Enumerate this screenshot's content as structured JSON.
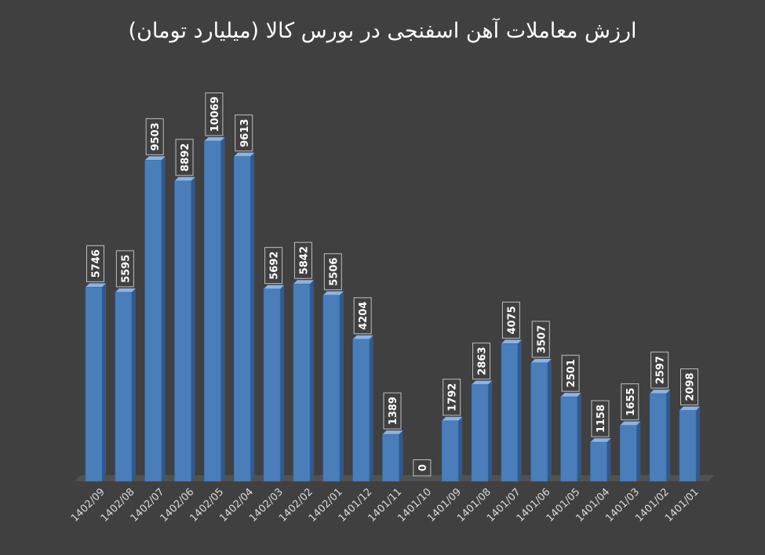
{
  "chart_data": {
    "type": "bar",
    "title": "ارزش معاملات آهن اسفنجی در بورس کالا (میلیارد تومان)",
    "categories": [
      "1402/09",
      "1402/08",
      "1402/07",
      "1402/06",
      "1402/05",
      "1402/04",
      "1402/03",
      "1402/02",
      "1402/01",
      "1401/12",
      "1401/11",
      "1401/10",
      "1401/09",
      "1401/08",
      "1401/07",
      "1401/06",
      "1401/05",
      "1401/04",
      "1401/03",
      "1401/02",
      "1401/01"
    ],
    "values": [
      5746,
      5595,
      9503,
      8892,
      10069,
      9613,
      5692,
      5842,
      5506,
      4204,
      1389,
      0,
      1792,
      2863,
      4075,
      3507,
      2501,
      1158,
      1655,
      2597,
      2098
    ],
    "value_labels": [
      "5746",
      "5595",
      "9503",
      "8892",
      "10069",
      "9613",
      "5692",
      "5842",
      "5506",
      "4204",
      "1389",
      "0",
      "1792",
      "2863",
      "4075",
      "3507",
      "2501",
      "1158",
      "1655",
      "2597",
      "2098"
    ],
    "xlabel": "",
    "ylabel": "",
    "ylim": [
      0,
      10069
    ],
    "grid": false,
    "legend": "none",
    "colors": {
      "background": "#404040",
      "bar_front": "#4a7ebb",
      "bar_side": "#2f5a8f",
      "bar_top": "#8fb3de",
      "floor": "#555555",
      "label_box_fill": "#404040",
      "label_box_stroke": "#bfbfbf",
      "text": "#ffffff",
      "tick_text": "#d9d9d9"
    }
  }
}
